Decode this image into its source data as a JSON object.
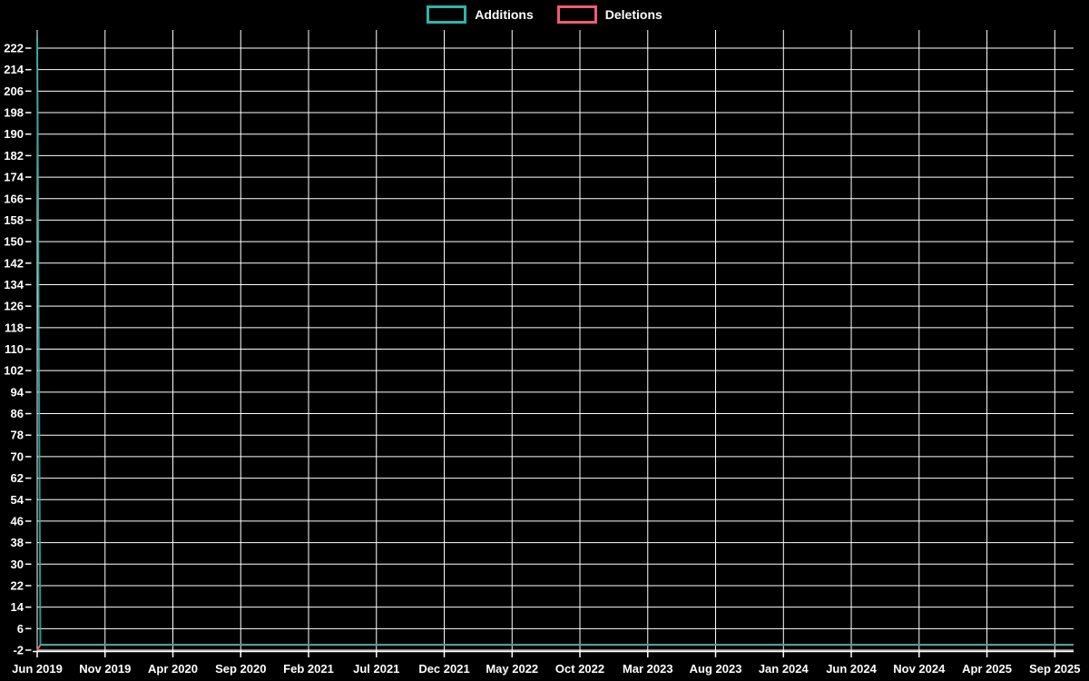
{
  "page": {
    "background_color": "#000000",
    "text_color": "#ffffff",
    "grid_color": "#ffffff"
  },
  "legend": {
    "position": "top",
    "items": [
      {
        "label": "Additions",
        "color": "#30b2ac"
      },
      {
        "label": "Deletions",
        "color": "#f05b72"
      }
    ]
  },
  "chart_data": {
    "type": "line",
    "title": "",
    "xlabel": "",
    "ylabel": "",
    "background": "#000000",
    "grid": true,
    "legend_position": "top",
    "x_tick_labels": [
      "Jun 2019",
      "Nov 2019",
      "Apr 2020",
      "Sep 2020",
      "Feb 2021",
      "Jul 2021",
      "Dec 2021",
      "May 2022",
      "Oct 2022",
      "Mar 2023",
      "Aug 2023",
      "Jan 2024",
      "Jun 2024",
      "Nov 2024",
      "Apr 2025",
      "Sep 2025"
    ],
    "y_tick_labels": [
      -2,
      6,
      14,
      22,
      30,
      38,
      46,
      54,
      62,
      70,
      78,
      86,
      94,
      102,
      110,
      118,
      126,
      134,
      142,
      150,
      158,
      166,
      174,
      182,
      190,
      198,
      206,
      214,
      222
    ],
    "ylim": [
      -2,
      226
    ],
    "x_weeks_total": 328,
    "point_format": "[week_index, value]",
    "series": [
      {
        "name": "Additions",
        "color": "#30b2ac",
        "points": [
          [
            0,
            226
          ],
          [
            1,
            0
          ],
          [
            327,
            0
          ]
        ]
      },
      {
        "name": "Deletions",
        "color": "#f05b72",
        "points": [
          [
            0,
            -2
          ],
          [
            1,
            0
          ],
          [
            327,
            0
          ]
        ]
      }
    ]
  }
}
